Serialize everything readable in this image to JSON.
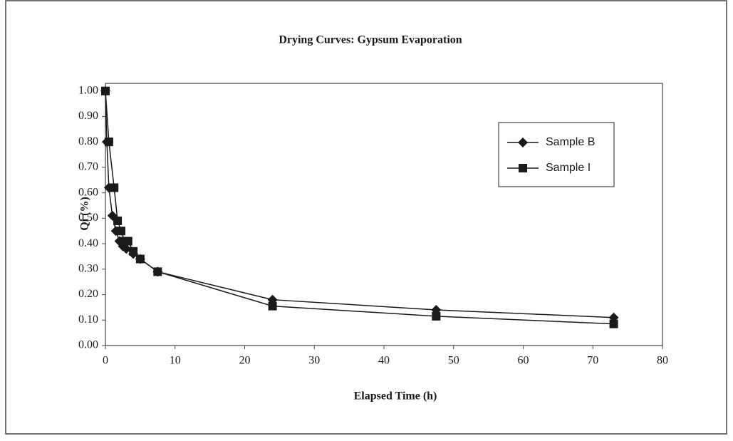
{
  "chart_data": {
    "type": "line",
    "title": "Drying Curves: Gypsum Evaporation",
    "xlabel": "Elapsed Time (h)",
    "ylabel": "Qi (%)",
    "series": [
      {
        "name": "Sample B",
        "marker": "diamond",
        "color": "#1a1a1a",
        "x": [
          0,
          0.2,
          0.5,
          1,
          1.5,
          2,
          2.5,
          3,
          4,
          5,
          7.5,
          24,
          47.5,
          73
        ],
        "values": [
          1.0,
          0.8,
          0.62,
          0.51,
          0.45,
          0.41,
          0.39,
          0.38,
          0.36,
          0.34,
          0.29,
          0.18,
          0.14,
          0.11
        ]
      },
      {
        "name": "Sample I",
        "marker": "square",
        "color": "#1a1a1a",
        "x": [
          0,
          0.5,
          1.25,
          1.75,
          2.25,
          2.75,
          3.25,
          4,
          5,
          7.5,
          24,
          47.5,
          73
        ],
        "values": [
          1.0,
          0.8,
          0.62,
          0.49,
          0.45,
          0.41,
          0.41,
          0.37,
          0.34,
          0.29,
          0.155,
          0.115,
          0.085
        ]
      }
    ],
    "xlim": [
      0,
      80
    ],
    "xticks": [
      0,
      10,
      20,
      30,
      40,
      50,
      60,
      70,
      80
    ],
    "ylim": [
      0,
      1.03
    ],
    "yticks": [
      {
        "value": 0,
        "label": "0.00"
      },
      {
        "value": 0.1,
        "label": "0.10"
      },
      {
        "value": 0.2,
        "label": "0.20"
      },
      {
        "value": 0.3,
        "label": "0.30"
      },
      {
        "value": 0.4,
        "label": "0.40"
      },
      {
        "value": 0.5,
        "label": "0.50"
      },
      {
        "value": 0.6,
        "label": "0.60"
      },
      {
        "value": 0.7,
        "label": "0.70"
      },
      {
        "value": 0.8,
        "label": "0.80"
      },
      {
        "value": 0.9,
        "label": "0.90"
      },
      {
        "value": 1.0,
        "label": "1.00"
      }
    ],
    "legend": "upper right",
    "grid": false
  }
}
